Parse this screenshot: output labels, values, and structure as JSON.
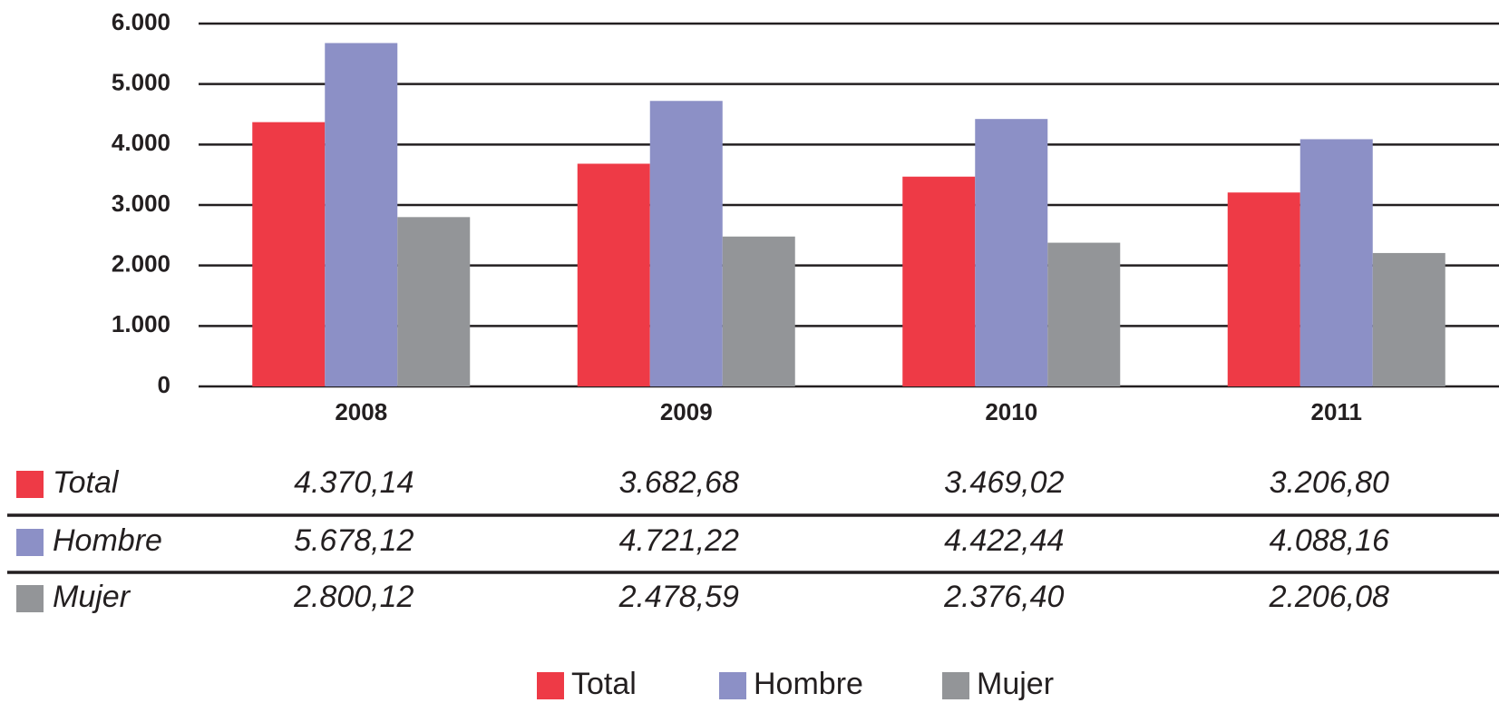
{
  "chart_data": {
    "type": "bar",
    "categories": [
      "2008",
      "2009",
      "2010",
      "2011"
    ],
    "series": [
      {
        "name": "Total",
        "color": "#ee3a46",
        "values": [
          4370.14,
          3682.68,
          3469.02,
          3206.8
        ],
        "value_labels": [
          "4.370,14",
          "3.682,68",
          "3.469,02",
          "3.206,80"
        ]
      },
      {
        "name": "Hombre",
        "color": "#8c90c6",
        "values": [
          5678.12,
          4721.22,
          4422.44,
          4088.16
        ],
        "value_labels": [
          "5.678,12",
          "4.721,22",
          "4.422,44",
          "4.088,16"
        ]
      },
      {
        "name": "Mujer",
        "color": "#939598",
        "values": [
          2800.12,
          2478.59,
          2376.4,
          2206.08
        ],
        "value_labels": [
          "2.800,12",
          "2.478,59",
          "2.376,40",
          "2.206,08"
        ]
      }
    ],
    "ylim": [
      0,
      6000
    ],
    "yticks": [
      0,
      {
        "value": 1000,
        "label": "1.000"
      },
      {
        "value": 2000,
        "label": "2.000"
      },
      {
        "value": 3000,
        "label": "3.000"
      },
      {
        "value": 4000,
        "label": "4.000"
      },
      {
        "value": 5000,
        "label": "5.000"
      },
      {
        "value": 6000,
        "label": "6.000"
      }
    ],
    "grid": true,
    "legend": "bottom"
  }
}
